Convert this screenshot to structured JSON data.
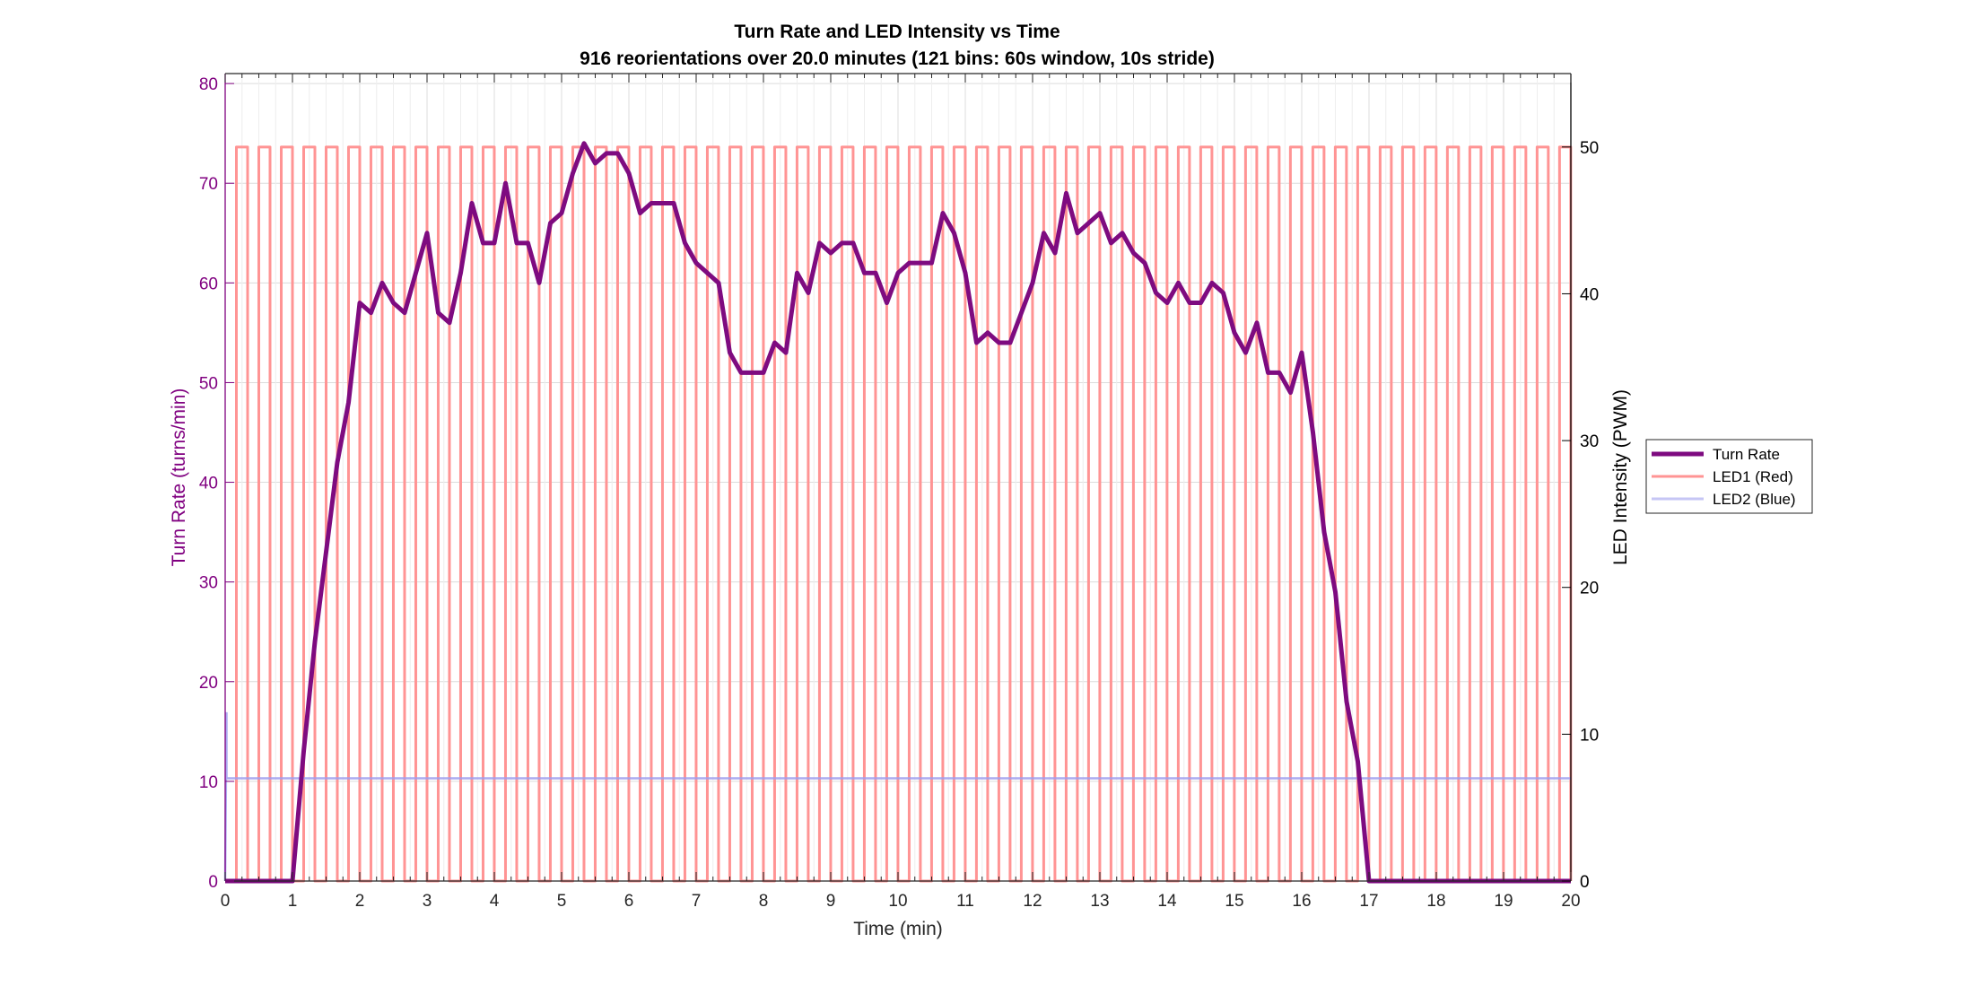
{
  "chart_data": {
    "type": "line",
    "title": "Turn Rate and LED Intensity vs Time",
    "subtitle": "916 reorientations over 20.0 minutes (121 bins: 60s window, 10s stride)",
    "xlabel": "Time (min)",
    "ylabel_left": "Turn Rate (turns/min)",
    "ylabel_right": "LED Intensity (PWM)",
    "xlim": [
      0,
      20
    ],
    "ylim_left": [
      0,
      81
    ],
    "ylim_right": [
      0,
      55
    ],
    "x_ticks": [
      0,
      1,
      2,
      3,
      4,
      5,
      6,
      7,
      8,
      9,
      10,
      11,
      12,
      13,
      14,
      15,
      16,
      17,
      18,
      19,
      20
    ],
    "y_ticks_left": [
      0,
      10,
      20,
      30,
      40,
      50,
      60,
      70,
      80
    ],
    "y_ticks_right": [
      0,
      10,
      20,
      30,
      40,
      50
    ],
    "grid": true,
    "legend_position": "outside-right",
    "colors": {
      "turn_rate": "#7e0b80",
      "led1": "#ff9494",
      "led2": "#c6c6f5",
      "left_axis": "#800080",
      "right_axis": "#000000"
    },
    "series": [
      {
        "name": "Turn Rate",
        "axis": "left",
        "x": [
          0.0,
          0.1667,
          0.3333,
          0.5,
          0.6667,
          0.8333,
          1.0,
          1.1667,
          1.3333,
          1.5,
          1.6667,
          1.8333,
          2.0,
          2.1667,
          2.3333,
          2.5,
          2.6667,
          2.8333,
          3.0,
          3.1667,
          3.3333,
          3.5,
          3.6667,
          3.8333,
          4.0,
          4.1667,
          4.3333,
          4.5,
          4.6667,
          4.8333,
          5.0,
          5.1667,
          5.3333,
          5.5,
          5.6667,
          5.8333,
          6.0,
          6.1667,
          6.3333,
          6.5,
          6.6667,
          6.8333,
          7.0,
          7.1667,
          7.3333,
          7.5,
          7.6667,
          7.8333,
          8.0,
          8.1667,
          8.3333,
          8.5,
          8.6667,
          8.8333,
          9.0,
          9.1667,
          9.3333,
          9.5,
          9.6667,
          9.8333,
          10.0,
          10.1667,
          10.3333,
          10.5,
          10.6667,
          10.8333,
          11.0,
          11.1667,
          11.3333,
          11.5,
          11.6667,
          11.8333,
          12.0,
          12.1667,
          12.3333,
          12.5,
          12.6667,
          12.8333,
          13.0,
          13.1667,
          13.3333,
          13.5,
          13.6667,
          13.8333,
          14.0,
          14.1667,
          14.3333,
          14.5,
          14.6667,
          14.8333,
          15.0,
          15.1667,
          15.3333,
          15.5,
          15.6667,
          15.8333,
          16.0,
          16.1667,
          16.3333,
          16.5,
          16.6667,
          16.8333,
          17.0,
          17.1667,
          17.3333,
          17.5,
          17.6667,
          17.8333,
          18.0,
          18.1667,
          18.3333,
          18.5,
          18.6667,
          18.8333,
          19.0,
          19.1667,
          19.3333,
          19.5,
          19.6667,
          19.8333,
          20.0
        ],
        "values": [
          0,
          0,
          0,
          0,
          0,
          0,
          0,
          13,
          24,
          33,
          42,
          48,
          58,
          57,
          60,
          58,
          57,
          61,
          65,
          57,
          56,
          61,
          68,
          64,
          64,
          70,
          64,
          64,
          60,
          66,
          67,
          71,
          74,
          72,
          73,
          73,
          71,
          67,
          68,
          68,
          68,
          64,
          62,
          61,
          60,
          53,
          51,
          51,
          51,
          54,
          53,
          61,
          59,
          64,
          63,
          64,
          64,
          61,
          61,
          58,
          61,
          62,
          62,
          62,
          67,
          65,
          61,
          54,
          55,
          54,
          54,
          57,
          60,
          65,
          63,
          69,
          65,
          66,
          67,
          64,
          65,
          63,
          62,
          59,
          58,
          60,
          58,
          58,
          60,
          59,
          55,
          53,
          56,
          51,
          51,
          49,
          53,
          45,
          35,
          29,
          18,
          12,
          0,
          0,
          0,
          0,
          0,
          0,
          0,
          0,
          0,
          0,
          0,
          0,
          0,
          0,
          0,
          0,
          0,
          0,
          0
        ]
      },
      {
        "name": "LED1 (Red)",
        "axis": "right",
        "waveform": "square",
        "period_min": 0.3333,
        "high_duration_min": 0.1667,
        "first_rise_min": 0.1667,
        "high": 50,
        "low": 0
      },
      {
        "name": "LED2 (Blue)",
        "axis": "right",
        "x": [
          0,
          0.02,
          0.02,
          20
        ],
        "values": [
          0,
          11.5,
          7,
          7
        ]
      }
    ]
  }
}
